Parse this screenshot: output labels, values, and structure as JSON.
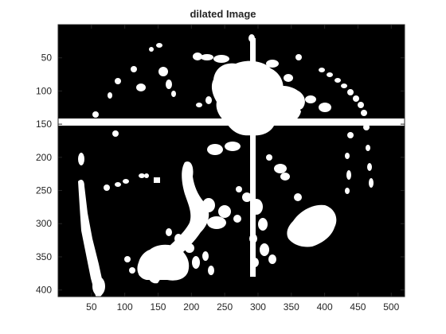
{
  "figure": {
    "title": "dilated Image"
  },
  "axes": {
    "x_ticks": [
      "50",
      "100",
      "150",
      "200",
      "250",
      "300",
      "350",
      "400",
      "450",
      "500"
    ],
    "y_ticks": [
      "50",
      "100",
      "150",
      "200",
      "250",
      "300",
      "350",
      "400"
    ],
    "xlim": [
      0,
      520
    ],
    "ylim": [
      0,
      410
    ],
    "y_direction": "reverse",
    "background": "#000000",
    "foreground": "#ffffff"
  }
}
